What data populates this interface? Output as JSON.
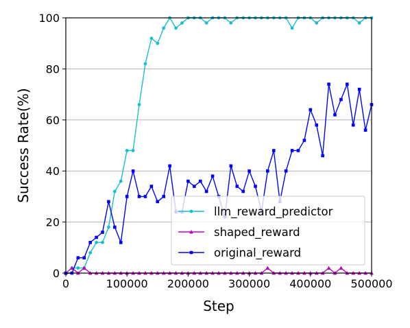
{
  "chart_data": {
    "type": "line",
    "xlabel": "Step",
    "ylabel": "Success Rate(%)",
    "xlim": [
      0,
      500000
    ],
    "ylim": [
      0,
      100
    ],
    "xticks": [
      0,
      100000,
      200000,
      300000,
      400000,
      500000
    ],
    "xtick_labels": [
      "0",
      "100000",
      "200000",
      "300000",
      "400000",
      "500000"
    ],
    "yticks": [
      0,
      20,
      40,
      60,
      80,
      100
    ],
    "ytick_labels": [
      "0",
      "20",
      "40",
      "60",
      "80",
      "100"
    ],
    "grid": "horizontal",
    "legend_position": "lower-right",
    "x": [
      0,
      10000,
      20000,
      30000,
      40000,
      50000,
      60000,
      70000,
      80000,
      90000,
      100000,
      110000,
      120000,
      130000,
      140000,
      150000,
      160000,
      170000,
      180000,
      190000,
      200000,
      210000,
      220000,
      230000,
      240000,
      250000,
      260000,
      270000,
      280000,
      290000,
      300000,
      310000,
      320000,
      330000,
      340000,
      350000,
      360000,
      370000,
      380000,
      390000,
      400000,
      410000,
      420000,
      430000,
      440000,
      450000,
      460000,
      470000,
      480000,
      490000,
      500000
    ],
    "series": [
      {
        "name": "llm_reward_predictor",
        "color": "#17becf",
        "marker": "circle",
        "values": [
          0,
          2,
          2,
          2,
          8,
          12,
          12,
          18,
          32,
          36,
          48,
          48,
          66,
          82,
          92,
          90,
          96,
          100,
          96,
          98,
          100,
          100,
          100,
          98,
          100,
          100,
          100,
          98,
          100,
          100,
          100,
          100,
          100,
          100,
          100,
          100,
          100,
          96,
          100,
          100,
          100,
          98,
          100,
          100,
          100,
          100,
          100,
          100,
          98,
          100,
          100
        ]
      },
      {
        "name": "shaped_reward",
        "color": "#bf00bf",
        "marker": "triangle",
        "values": [
          0,
          2,
          0,
          2,
          0,
          0,
          0,
          0,
          0,
          0,
          0,
          0,
          0,
          0,
          0,
          0,
          0,
          0,
          0,
          0,
          0,
          0,
          0,
          0,
          0,
          0,
          0,
          0,
          0,
          0,
          0,
          0,
          0,
          2,
          0,
          0,
          0,
          0,
          0,
          0,
          0,
          0,
          0,
          2,
          0,
          2,
          0,
          0,
          0,
          0,
          0
        ]
      },
      {
        "name": "original_reward",
        "color": "#0000ff",
        "marker": "square",
        "values": [
          0,
          0,
          6,
          6,
          12,
          14,
          16,
          28,
          18,
          12,
          30,
          40,
          30,
          30,
          34,
          28,
          30,
          42,
          24,
          24,
          36,
          34,
          36,
          32,
          38,
          30,
          22,
          42,
          34,
          32,
          40,
          34,
          24,
          40,
          48,
          28,
          40,
          48,
          48,
          52,
          64,
          58,
          46,
          74,
          62,
          68,
          74,
          58,
          72,
          56,
          66
        ]
      }
    ]
  }
}
